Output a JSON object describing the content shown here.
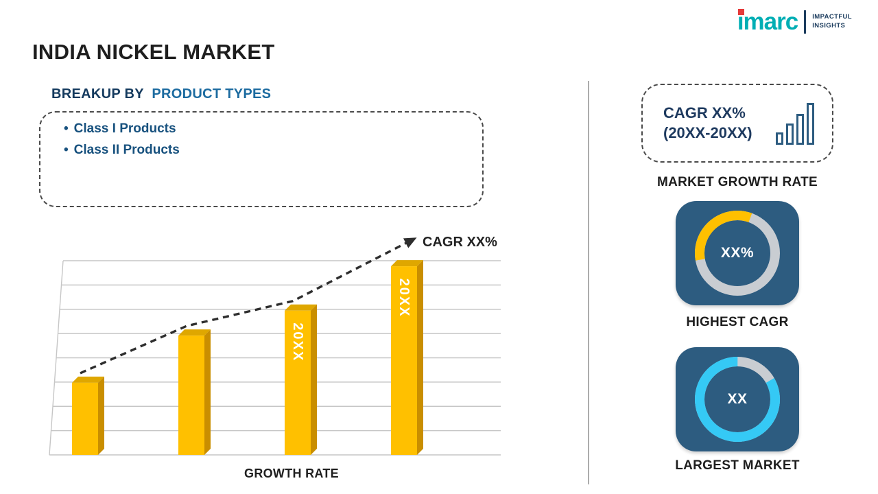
{
  "logo": {
    "brand": "imarc",
    "tagline_line1": "IMPACTFUL",
    "tagline_line2": "INSIGHTS"
  },
  "header": {
    "title": "INDIA NICKEL MARKET"
  },
  "breakup": {
    "heading_prefix": "BREAKUP BY",
    "heading_highlight": "PRODUCT TYPES",
    "bullet": "•",
    "items": [
      "Class I Products",
      "Class II Products"
    ]
  },
  "chart_data": [
    {
      "type": "bar",
      "title": "GROWTH RATE",
      "xlabel": "GROWTH RATE",
      "categories": [
        "",
        "",
        "20XX",
        "20XX"
      ],
      "values": [
        26,
        43,
        52,
        68
      ],
      "ylim": [
        0,
        70
      ],
      "grid": true,
      "gridlines": 9,
      "bar_color": "#FFC000",
      "bar_side_color": "#C98E00",
      "bar_top_color": "#DFA700",
      "trend_label": "CAGR XX%",
      "trend_style": "dashed-arrow"
    },
    {
      "type": "pie",
      "style": "donut",
      "label": "HIGHEST CAGR",
      "center_text": "XX%",
      "arc_color": "#FFC000",
      "track_color": "#C9CDD2",
      "arc_start_deg": 170,
      "arc_sweep_deg": 120
    },
    {
      "type": "pie",
      "style": "donut",
      "label": "LARGEST MARKET",
      "center_text": "XX",
      "arc_color": "#35C9F5",
      "track_color": "#C9CDD2",
      "arc_start_deg": 330,
      "arc_sweep_deg": 300
    }
  ],
  "right_panel": {
    "cagr_line1": "CAGR XX%",
    "cagr_line2": "(20XX-20XX)",
    "growth_rate_label": "MARKET GROWTH RATE"
  },
  "colors": {
    "heading_navy": "#143A5E",
    "heading_blue": "#1C6BA0",
    "bullet_blue": "#17517E",
    "card_bg": "#2D5C80",
    "bar_gold": "#FFC000",
    "donut_cyan": "#35C9F5",
    "logo_teal": "#00AEB4",
    "logo_red": "#E63A3A"
  }
}
